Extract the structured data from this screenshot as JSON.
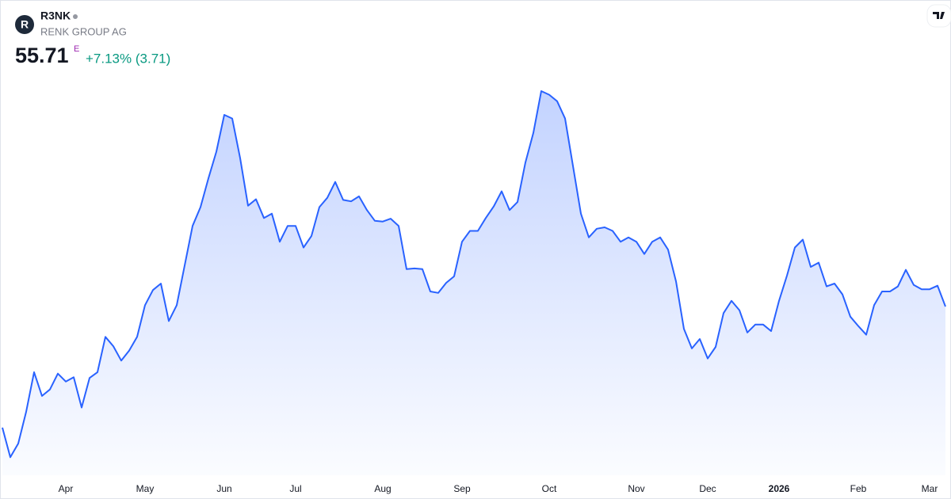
{
  "chart_data": {
    "type": "area",
    "title": "R3NK",
    "subtitle": "RENK GROUP AG",
    "logo_text": "R",
    "price": 55.71,
    "price_flag": "E",
    "change": "+7.13% (3.71)",
    "color": "#2962ff",
    "change_color": "#089981",
    "ylim": [
      32.3,
      87.8
    ],
    "categories": [
      null,
      null,
      null,
      null,
      null,
      null,
      null,
      null,
      "Apr",
      null,
      null,
      null,
      null,
      null,
      null,
      null,
      null,
      null,
      "May",
      null,
      null,
      null,
      null,
      null,
      null,
      null,
      null,
      null,
      "Jun",
      null,
      null,
      null,
      null,
      null,
      null,
      null,
      null,
      "Jul",
      null,
      null,
      null,
      null,
      null,
      null,
      null,
      null,
      null,
      null,
      "Aug",
      null,
      null,
      null,
      null,
      null,
      null,
      null,
      null,
      null,
      "Sep",
      null,
      null,
      null,
      null,
      null,
      null,
      null,
      null,
      null,
      null,
      "Oct",
      null,
      null,
      null,
      null,
      null,
      null,
      null,
      null,
      null,
      null,
      "Nov",
      null,
      null,
      null,
      null,
      null,
      null,
      null,
      null,
      "Dec",
      null,
      null,
      null,
      null,
      null,
      null,
      null,
      null,
      "2026",
      null,
      null,
      null,
      null,
      null,
      null,
      null,
      null,
      null,
      "Feb",
      null,
      null,
      null,
      null,
      null,
      null,
      null,
      null,
      "Mar",
      null,
      null
    ],
    "values": [
      38.9,
      34.8,
      36.7,
      41.1,
      46.6,
      43.3,
      44.2,
      46.4,
      45.3,
      45.9,
      41.7,
      45.8,
      46.6,
      51.5,
      50.2,
      48.2,
      49.6,
      51.5,
      55.9,
      58.0,
      58.9,
      53.7,
      55.9,
      61.4,
      66.9,
      69.5,
      73.5,
      77.2,
      82.3,
      81.8,
      76.3,
      69.7,
      70.6,
      68.0,
      68.6,
      64.7,
      66.9,
      66.9,
      63.9,
      65.5,
      69.5,
      70.8,
      73.0,
      70.5,
      70.3,
      71.0,
      69.1,
      67.6,
      67.5,
      67.9,
      66.9,
      60.9,
      61.0,
      60.9,
      57.8,
      57.6,
      59.0,
      59.9,
      64.7,
      66.2,
      66.2,
      68.0,
      69.6,
      71.7,
      69.1,
      70.2,
      75.7,
      79.8,
      85.6,
      85.1,
      84.2,
      81.8,
      75.2,
      68.6,
      65.3,
      66.5,
      66.7,
      66.2,
      64.7,
      65.3,
      64.7,
      63.0,
      64.7,
      65.3,
      63.6,
      59.2,
      52.6,
      49.9,
      51.2,
      48.5,
      50.1,
      54.8,
      56.5,
      55.2,
      52.1,
      53.2,
      53.2,
      52.3,
      56.5,
      60.0,
      63.9,
      65.0,
      61.2,
      61.8,
      58.5,
      58.9,
      57.4,
      54.3,
      53.0,
      51.8,
      55.9,
      57.8,
      57.8,
      58.5,
      60.8,
      58.7,
      58.1,
      58.1,
      58.6,
      55.71
    ]
  }
}
